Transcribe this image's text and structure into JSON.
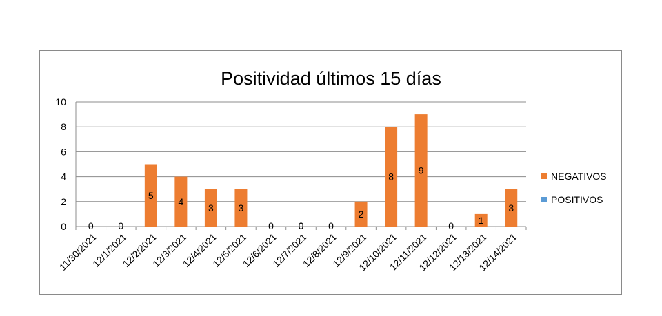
{
  "chart_data": {
    "type": "bar",
    "title": "Positividad últimos 15 días",
    "categories": [
      "11/30/2021",
      "12/1/2021",
      "12/2/2021",
      "12/3/2021",
      "12/4/2021",
      "12/5/2021",
      "12/6/2021",
      "12/7/2021",
      "12/8/2021",
      "12/9/2021",
      "12/10/2021",
      "12/11/2021",
      "12/12/2021",
      "12/13/2021",
      "12/14/2021"
    ],
    "series": [
      {
        "name": "NEGATIVOS",
        "color": "#ed7d31",
        "values": [
          0,
          0,
          5,
          4,
          3,
          3,
          0,
          0,
          0,
          2,
          8,
          9,
          0,
          1,
          3
        ]
      },
      {
        "name": "POSITIVOS",
        "color": "#5b9bd5",
        "values": [
          0,
          0,
          0,
          0,
          0,
          0,
          0,
          0,
          0,
          0,
          0,
          0,
          0,
          0,
          0
        ]
      }
    ],
    "ylim": [
      0,
      10
    ],
    "yticks": [
      0,
      2,
      4,
      6,
      8,
      10
    ],
    "grid": true,
    "legend": "right",
    "data_labels": true,
    "xlabel": "",
    "ylabel": ""
  }
}
